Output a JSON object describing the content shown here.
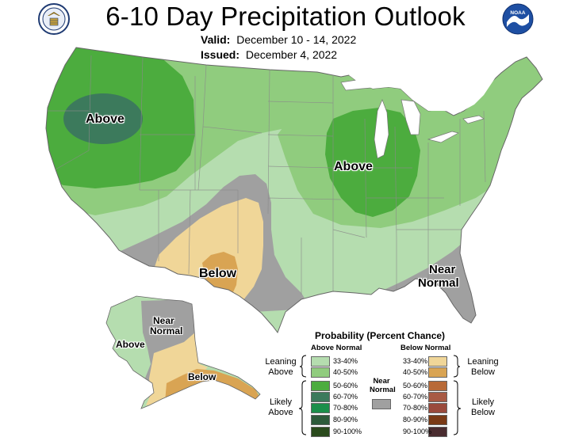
{
  "header": {
    "title": "6-10 Day Precipitation Outlook",
    "valid_label": "Valid:",
    "valid_value": "December 10 - 14, 2022",
    "issued_label": "Issued:",
    "issued_value": "December 4, 2022",
    "left_logo_icon": "department-of-commerce-seal-icon",
    "right_logo_icon": "noaa-logo-icon",
    "right_logo_text": "NOAA"
  },
  "map": {
    "region_labels": {
      "above_northwest": "Above",
      "above_midwest": "Above",
      "below_southwest": "Below",
      "near_normal_southeast_line1": "Near",
      "near_normal_southeast_line2": "Normal",
      "near_normal_alaska_line1": "Near",
      "near_normal_alaska_line2": "Normal",
      "above_alaska": "Above",
      "below_alaska": "Below"
    },
    "colors": {
      "water": "#ffffff",
      "above_33_40": "#b5ddaf",
      "above_40_50": "#90cc7e",
      "above_50_60": "#4cac3e",
      "above_60_70": "#3c7a5c",
      "near_normal": "#a0a0a0",
      "below_33_40": "#f0d698",
      "below_40_50": "#d9a453",
      "border": "#888888"
    }
  },
  "legend": {
    "title": "Probability (Percent Chance)",
    "above_header": "Above Normal",
    "below_header": "Below Normal",
    "near_header_line1": "Near",
    "near_header_line2": "Normal",
    "leaning_above_line1": "Leaning",
    "leaning_above_line2": "Above",
    "likely_above_line1": "Likely",
    "likely_above_line2": "Above",
    "leaning_below_line1": "Leaning",
    "leaning_below_line2": "Below",
    "likely_below_line1": "Likely",
    "likely_below_line2": "Below",
    "above_bins": [
      {
        "label": "33-40%",
        "color": "#b5ddaf"
      },
      {
        "label": "40-50%",
        "color": "#90cc7e"
      },
      {
        "label": "50-60%",
        "color": "#4cac3e"
      },
      {
        "label": "60-70%",
        "color": "#3c7a5c"
      },
      {
        "label": "70-80%",
        "color": "#1b8f4a"
      },
      {
        "label": "80-90%",
        "color": "#2d5a3a"
      },
      {
        "label": "90-100%",
        "color": "#2a4a1c"
      }
    ],
    "below_bins": [
      {
        "label": "33-40%",
        "color": "#f0d698"
      },
      {
        "label": "40-50%",
        "color": "#d9a453"
      },
      {
        "label": "50-60%",
        "color": "#b86a38"
      },
      {
        "label": "60-70%",
        "color": "#a85a44"
      },
      {
        "label": "70-80%",
        "color": "#9a4a3c"
      },
      {
        "label": "80-90%",
        "color": "#7a3a16"
      },
      {
        "label": "90-100%",
        "color": "#4a2c30"
      }
    ],
    "near_color": "#a0a0a0"
  }
}
